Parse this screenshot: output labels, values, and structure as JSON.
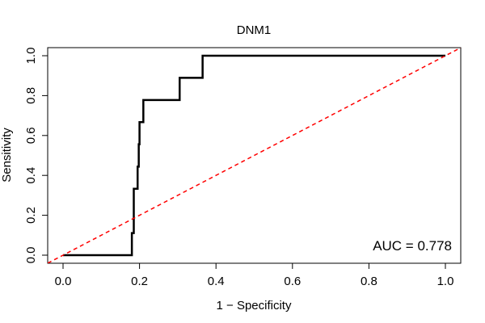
{
  "chart_data": {
    "type": "line",
    "title": "DNM1",
    "xlabel": "1 − Specificity",
    "ylabel": "Sensitivity",
    "xlim": [
      0,
      1
    ],
    "ylim": [
      0,
      1
    ],
    "x_ticks": [
      0.0,
      0.2,
      0.4,
      0.6,
      0.8,
      1.0
    ],
    "x_tick_labels": [
      "0.0",
      "0.2",
      "0.4",
      "0.6",
      "0.8",
      "1.0"
    ],
    "y_ticks": [
      0.0,
      0.2,
      0.4,
      0.6,
      0.8,
      1.0
    ],
    "y_tick_labels": [
      "0.0",
      "0.2",
      "0.4",
      "0.6",
      "0.8",
      "1.0"
    ],
    "grid": false,
    "annotation": "AUC = 0.778",
    "series": [
      {
        "name": "ROC",
        "color": "#000000",
        "style": "solid",
        "x": [
          0.0,
          0.18,
          0.18,
          0.185,
          0.185,
          0.195,
          0.195,
          0.198,
          0.198,
          0.2,
          0.2,
          0.21,
          0.21,
          0.305,
          0.305,
          0.365,
          0.365,
          1.0
        ],
        "y": [
          0.0,
          0.0,
          0.111,
          0.111,
          0.333,
          0.333,
          0.444,
          0.444,
          0.556,
          0.556,
          0.667,
          0.667,
          0.778,
          0.778,
          0.889,
          0.889,
          1.0,
          1.0
        ]
      },
      {
        "name": "Reference",
        "color": "#ff0000",
        "style": "dashed",
        "x": [
          -0.04,
          1.04
        ],
        "y": [
          -0.04,
          1.04
        ]
      }
    ]
  }
}
